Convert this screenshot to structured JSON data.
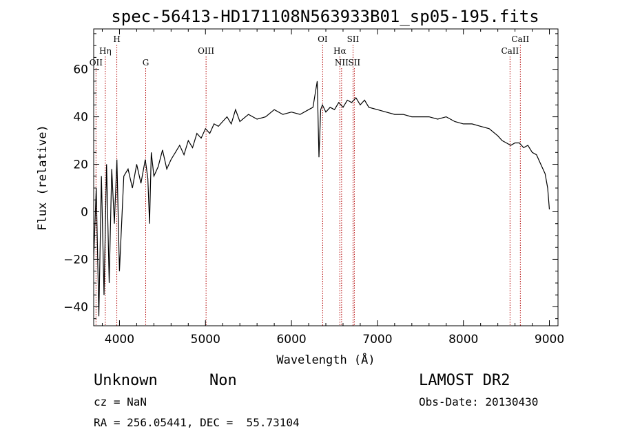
{
  "chart_data": {
    "type": "line",
    "title": "spec-56413-HD171108N563933B01_sp05-195.fits",
    "xlabel": "Wavelength (Å)",
    "ylabel": "Flux (relative)",
    "xlim": [
      3700,
      9100
    ],
    "ylim": [
      -48,
      77
    ],
    "x_ticks": [
      4000,
      5000,
      6000,
      7000,
      8000,
      9000
    ],
    "y_ticks": [
      -40,
      -20,
      0,
      20,
      40,
      60
    ],
    "grid": false,
    "series": [
      {
        "x": [
          3700,
          3730,
          3760,
          3790,
          3820,
          3850,
          3880,
          3910,
          3940,
          3970,
          4000,
          4050,
          4100,
          4150,
          4200,
          4250,
          4300,
          4330,
          4350,
          4370,
          4400,
          4450,
          4500,
          4550,
          4600,
          4650,
          4700,
          4750,
          4800,
          4850,
          4900,
          4950,
          5000,
          5050,
          5100,
          5150,
          5200,
          5250,
          5300,
          5350,
          5400,
          5500,
          5600,
          5700,
          5800,
          5900,
          6000,
          6100,
          6200,
          6250,
          6300,
          6320,
          6340,
          6360,
          6400,
          6450,
          6500,
          6550,
          6600,
          6650,
          6700,
          6750,
          6800,
          6850,
          6900,
          7000,
          7100,
          7200,
          7300,
          7400,
          7500,
          7600,
          7700,
          7800,
          7900,
          8000,
          8100,
          8200,
          8300,
          8400,
          8450,
          8500,
          8550,
          8600,
          8650,
          8700,
          8750,
          8800,
          8850,
          8900,
          8950,
          8980,
          9000
        ],
        "y": [
          -20,
          10,
          -44,
          15,
          -35,
          20,
          -30,
          18,
          -5,
          22,
          -25,
          15,
          18,
          10,
          20,
          12,
          22,
          14,
          -5,
          25,
          15,
          19,
          26,
          18,
          22,
          25,
          28,
          24,
          30,
          27,
          33,
          31,
          35,
          33,
          37,
          36,
          38,
          40,
          37,
          43,
          38,
          41,
          39,
          40,
          43,
          41,
          42,
          41,
          43,
          44,
          55,
          23,
          43,
          45,
          42,
          44,
          43,
          46,
          44,
          47,
          46,
          48,
          45,
          47,
          44,
          43,
          42,
          41,
          41,
          40,
          40,
          40,
          39,
          40,
          38,
          37,
          37,
          36,
          35,
          32,
          30,
          29,
          28,
          29,
          29,
          27,
          28,
          25,
          24,
          20,
          16,
          10,
          1
        ]
      }
    ],
    "lines": [
      {
        "name": "OII",
        "x": 3727,
        "row": 3
      },
      {
        "name": "Hη",
        "x": 3835,
        "row": 2
      },
      {
        "name": "H",
        "x": 3969,
        "row": 1
      },
      {
        "name": "G",
        "x": 4305,
        "row": 3
      },
      {
        "name": "OIII",
        "x": 5007,
        "row": 2
      },
      {
        "name": "OI",
        "x": 6363,
        "row": 1
      },
      {
        "name": "Hα",
        "x": 6563,
        "row": 2
      },
      {
        "name": "NII",
        "x": 6583,
        "row": 3
      },
      {
        "name": "SII",
        "x": 6716,
        "row": 1
      },
      {
        "name": "SII",
        "x": 6731,
        "row": 3
      },
      {
        "name": "CaII",
        "x": 8542,
        "row": 2
      },
      {
        "name": "CaII",
        "x": 8662,
        "row": 1
      }
    ]
  },
  "info": {
    "object_class": "Unknown",
    "object_subclass": "Non",
    "survey": "LAMOST DR2",
    "cz": "cz = NaN",
    "obs_date": "Obs-Date: 20130430",
    "coords": "RA = 256.05441, DEC =  55.73104"
  },
  "colors": {
    "spectrum": "#000000",
    "line_marker": "#b30000"
  }
}
